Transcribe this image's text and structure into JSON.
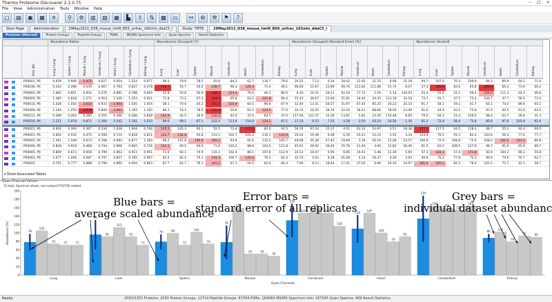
{
  "app": {
    "title": "Thermo Proteome Discoverer 2.1.0.75",
    "status": "Ready",
    "summary": "2093/3355 Proteins: 2093 Protein Groups: 12714 Peptide Groups: 67354 PSMs: 164065 MS/MS Spectrum Info: 167345 Quan Spectra: 409 Result Statistics"
  },
  "menu": [
    "File",
    "View",
    "Administration",
    "Tools",
    "Window",
    "Help"
  ],
  "toolbar_icons": [
    "new-file-icon",
    "open-folder-icon",
    "save-icon",
    "save-all-icon",
    "close-icon",
    "filter-icon",
    "workflow-icon",
    "view-icon",
    "report-icon",
    "table-icon",
    "chart-icon",
    "export-icon",
    "sort-icon",
    "layout-icon",
    "window-icon",
    "network-icon",
    "settings-icon",
    "tool-icon",
    "pin-icon",
    "help-icon"
  ],
  "doc_tabs": [
    "Start Page",
    "Administration",
    "29May2013_D38_mouse_tmt8_B03_unfrac_165min_ddaC5_I",
    "Study: TMT8",
    "29May2013_D38_mouse_tmt8_B04_unfrac_165min_ddaC5_I"
  ],
  "sub_tabs": [
    "Proteins (filtered)",
    "Protein Groups",
    "Peptide Groups",
    "PSMs",
    "MS/MS Spectrum Info",
    "Quan Spectra",
    "Result Statistics"
  ],
  "grid_groups": [
    "Abundance Ratios",
    "Abundances (Grouped) [?]",
    "Abundances (Grouped) Standard Errors [%]",
    "Abundances (Scaled)"
  ],
  "col_first": "Prot. IDs",
  "ratio_cols": [
    "Lung / Lung",
    "Spleen / Lung",
    "Muscle / Lung",
    "Cerebrum / Lung",
    "Heart / Lung",
    "Cerebellum / Lung",
    "Kidney / Lung"
  ],
  "tissues": [
    "Lung",
    "Liver",
    "Spleen",
    "Muscle",
    "Cerebrum",
    "Heart",
    "Cerebellum",
    "Kidney"
  ],
  "rows": [
    {
      "id": "P00041, P6",
      "ratio": [
        "0.659",
        "0.946",
        "1.971",
        "0.627",
        "0.954",
        "1.224",
        "0.677"
      ],
      "ab": [
        "98.0",
        "79.8",
        "78.5",
        "93.8",
        "84.2",
        "62.7",
        "110.7",
        "79.6"
      ],
      "se": [
        "20.22",
        "7.13",
        "0.34",
        "38.42",
        "22.92",
        "21.25",
        "8.68",
        "31.18"
      ],
      "sc": [
        "94.7",
        "107.0",
        "70.3",
        "109.9",
        "84.3",
        "89.9",
        "64.5",
        "71.6"
      ]
    },
    {
      "id": "P00038, P6",
      "ratio": [
        "0.310",
        "0.286",
        "0.039",
        "0.067",
        "0.794",
        "0.627",
        "0.278"
      ],
      "ab": [
        "176.7",
        "54.7",
        "50.6",
        "148.7",
        "96.3",
        "124.4",
        "73.4",
        "49.1"
      ],
      "se": [
        "88.60",
        "15.67",
        "12.89",
        "90.76",
        "121.82",
        "111.86",
        "51.74",
        "8.07"
      ],
      "sc": [
        "37.4",
        "285.8",
        "82.6",
        "65.8",
        "283.3",
        "65.3",
        "73.9",
        "66.2"
      ]
    },
    {
      "id": "P00003, P6",
      "ratio": [
        "1.082",
        "0.851",
        "0.934",
        "0.576",
        "0.891",
        "0.788",
        "0.845"
      ],
      "ab": [
        "52.8",
        "50.8",
        "50.9",
        "248.7",
        "124.4",
        "79.4",
        "46.1",
        "80.6"
      ],
      "se": [
        "8.30",
        "10.31",
        "29.21",
        "92.54",
        "17.72",
        "1.59",
        "5.14",
        "140.03"
      ],
      "sc": [
        "55.4",
        "55.4",
        "52.1",
        "99.4",
        "156.6",
        "111.4",
        "44.3",
        "46.8"
      ]
    },
    {
      "id": "P00005, P6",
      "ratio": [
        "1.385",
        "0.838",
        "1.271",
        "0.914",
        "1.346",
        "1.353",
        "0.921"
      ],
      "ab": [
        "71.8",
        "73.2",
        "67.3",
        "244.9",
        "65.8",
        "63.2",
        "121.8",
        "66.4"
      ],
      "se": [
        "25.43",
        "38.67",
        "23.09",
        "51.81",
        "34.44",
        "34.35",
        "113.18",
        "33.18"
      ],
      "sc": [
        "73.7",
        "91.7",
        "47.5",
        "75.4",
        "104.7",
        "47.7",
        "56.9",
        "73.4"
      ]
    },
    {
      "id": "P00033, P6",
      "ratio": [
        "1.028",
        "1.016",
        "2.022",
        "0.933",
        "1.954",
        "1.545",
        "1.054"
      ],
      "ab": [
        "58.1",
        "70.6",
        "50.2",
        "241.0",
        "120.9",
        "64.5",
        "96.8",
        "67.9"
      ],
      "se": [
        "12.46",
        "13.31",
        "26.57",
        "31.97",
        "67.45",
        "85.25",
        "36.23",
        "25.33"
      ],
      "sc": [
        "61.7",
        "58.1",
        "59.2",
        "61.7",
        "65.1",
        "74.2",
        "89.6",
        "65.1"
      ]
    },
    {
      "id": "P00006, P6",
      "ratio": [
        "1.184",
        "1.255",
        "4.879",
        "0.844",
        "2.063",
        "1.165",
        "1.165"
      ],
      "ab": [
        "86.2",
        "74.3",
        "78.5",
        "231.9",
        "55.8",
        "65.5",
        "124.5",
        "77.9"
      ],
      "se": [
        "16.15",
        "16.55",
        "38.79",
        "32.04",
        "18.41",
        "88.66",
        "78.09",
        "23.49"
      ],
      "sc": [
        "61.6",
        "44.9",
        "63.5",
        "75.8",
        "97.4",
        "60.5",
        "61.9",
        "64.5"
      ]
    },
    {
      "id": "P00111, P6",
      "ratio": [
        "0.389",
        "0.263",
        "0.285",
        "0.355",
        "0.396",
        "0.286",
        "0.849"
      ],
      "ab": [
        "142.9",
        "44.5",
        "36.9",
        "142.3",
        "42.9",
        "37.0",
        "64.5",
        "47.0"
      ],
      "se": [
        "117.94",
        "121.57",
        "12.28",
        "13.81",
        "5.81",
        "23.29",
        "110.48",
        "8.69"
      ],
      "sc": [
        "79.0",
        "64.1",
        "52.4",
        "139.5",
        "98.4",
        "63.7",
        "39.8",
        "31.3"
      ]
    },
    {
      "id": "P00016, P6",
      "ratio": [
        "1.211",
        "1.074",
        "0.871",
        "1.160",
        "1.542",
        "1.181",
        "1.033"
      ],
      "ab": [
        "99.6",
        "99.1",
        "87.1",
        "102.4",
        "113.6",
        "114.4",
        "124.2",
        "97.1"
      ],
      "se": [
        "17.33",
        "9.52",
        "7.25",
        "4.28",
        "2.03",
        "43.24",
        "14.56",
        "1.36"
      ],
      "sc": [
        "81.2",
        "72.9",
        "56.4",
        "73.4",
        "85.6",
        "87.6",
        "103.9",
        "91.6"
      ]
    },
    {
      "id": "P00021, P6",
      "ratio": [
        "0.932",
        "0.304",
        "0.367",
        "0.534",
        "1.038",
        "1.004",
        "0.744"
      ],
      "ab": [
        "135.5",
        "105.3",
        "92.1",
        "52.5",
        "72.4",
        "177.5",
        "82.0",
        "91.5"
      ],
      "se": [
        "56.35",
        "97.24",
        "15.37",
        "4.01",
        "63.32",
        "53.97",
        "0.51",
        "18.38"
      ],
      "sc": [
        "217.5",
        "117.5",
        "64.5",
        "118.3",
        "68.7",
        "55.1",
        "92.4",
        "69.5"
      ]
    },
    {
      "id": "P00001, P6",
      "ratio": [
        "0.842",
        "0.932",
        "0.675",
        "0.568",
        "0.724",
        "0.818",
        "0.811"
      ],
      "ab": [
        "124.7",
        "131.8",
        "93.8",
        "115.1",
        "102.7",
        "101.2",
        "116.1",
        "135.8"
      ],
      "se": [
        "20.24",
        "19.48",
        "6.08",
        "6.39",
        "25.41",
        "15.24",
        "5.55",
        "3.34"
      ],
      "sc": [
        "114.4",
        "76.5",
        "91.3",
        "82.0",
        "103.6",
        "56.4",
        "77.6",
        "77.7"
      ]
    },
    {
      "id": "P00005, P6",
      "ratio": [
        "1.361",
        "1.549",
        "0.673",
        "0.768",
        "0.692",
        "0.677",
        "1.283"
      ],
      "ab": [
        "96.2",
        "101.8",
        "149.0",
        "165.1",
        "93.8",
        "65.6",
        "115.2",
        "105.7"
      ],
      "se": [
        "48.68",
        "35.38",
        "47.45",
        "19.84",
        "3.39",
        "50.16",
        "15.08",
        "53.57"
      ],
      "sc": [
        "100.9",
        "72.9",
        "108.9",
        "75.6",
        "108.4",
        "142.2",
        "143.2",
        "86.8"
      ]
    },
    {
      "id": "P00006, P6",
      "ratio": [
        "0.828",
        "0.918",
        "0.468",
        "0.744",
        "0.906",
        "0.820",
        "0.726"
      ],
      "ab": [
        "143.1",
        "69.5",
        "94.6",
        "71.6",
        "102.2",
        "98.8",
        "104.5",
        "111.8"
      ],
      "se": [
        "45.61",
        "29.92",
        "36.49",
        "25.78",
        "21.40",
        "3.06",
        "12.82",
        "36.49"
      ],
      "sc": [
        "91.5",
        "83.5",
        "109.5",
        "127.9",
        "96.7",
        "91.6",
        "65.6",
        "89.7"
      ]
    },
    {
      "id": "P00085, P6",
      "ratio": [
        "0.809",
        "0.673",
        "0.656",
        "0.799",
        "0.962",
        "0.911",
        "0.951"
      ],
      "ab": [
        "73.0",
        "92.1",
        "79.9",
        "110.2",
        "102.4",
        "86.1",
        "107.8",
        "112.9"
      ],
      "se": [
        "20.13",
        "16.07",
        "5.95",
        "6.66",
        "16.43",
        "5.48",
        "11.30",
        "5.69"
      ],
      "sc": [
        "57.3",
        "183.1",
        "57.4",
        "171.8",
        "82.6",
        "104.2",
        "66.2",
        "55.8"
      ]
    },
    {
      "id": "P00003, P6",
      "ratio": [
        "1.077",
        "1.046",
        "0.687",
        "0.747",
        "0.857",
        "0.785",
        "0.997"
      ],
      "ab": [
        "82.5",
        "82.0",
        "79.1",
        "141.5",
        "100.7",
        "124.4",
        "79.3",
        "82.4"
      ],
      "se": [
        "32.70",
        "5.02",
        "9.38",
        "41.08",
        "4.14",
        "26.37",
        "4.39",
        "2.93"
      ],
      "sc": [
        "49.8",
        "76.2",
        "77.8",
        "72.5",
        "90.9",
        "79.0",
        "70.7",
        "92.7"
      ]
    },
    {
      "id": "P00022",
      "ratio": [
        "0.701",
        "0.777",
        "0.888",
        "0.796",
        "0.890",
        "0.694",
        "0.863"
      ],
      "ab": [
        "87.7",
        "81.7",
        "79.1",
        "161.2",
        "67.3",
        "54.5",
        "62.0",
        "85.4"
      ],
      "se": [
        "7.00",
        "8.13",
        "18.44",
        "17.41",
        "37.05",
        "9.89",
        "26.30",
        "24.97"
      ],
      "sc": [
        "181.0",
        "165.5",
        "82.3",
        "76.4",
        "102.2",
        "72.7",
        "42.3",
        "58.7"
      ]
    }
  ],
  "show_associated": "Show Associated Tables",
  "quan_panel": {
    "title": "Quan Channel Values",
    "subtitle": "15 total, Spectrum shown, non-unique(7/15/7/6) related",
    "ylabel": "Abundance [%]",
    "xlabel": "Quan Channels"
  },
  "chart_data": {
    "type": "bar",
    "title": "",
    "xlabel": "Quan Channels",
    "ylabel": "Abundance [%]",
    "ylim": [
      0,
      200
    ],
    "yticks": [
      0,
      20,
      40,
      60,
      80,
      100,
      120,
      140,
      160,
      180,
      200
    ],
    "categories": [
      "Lung",
      "Liver",
      "Spleen",
      "Muscle",
      "Cerebrum",
      "Heart",
      "Cerebellum",
      "Kidney"
    ],
    "groups": [
      {
        "avg": 78,
        "err": 20,
        "reps": [
          105,
          74,
          71,
          71
        ]
      },
      {
        "avg": 96,
        "err": 35,
        "reps": [
          91,
          113,
          91,
          71
        ]
      },
      {
        "avg": 79,
        "err": 18,
        "reps": [
          99,
          71,
          102,
          74
        ]
      },
      {
        "avg": 78,
        "err": 40,
        "reps": [
          159,
          50,
          50,
          45
        ]
      },
      {
        "avg": 130,
        "err": 40,
        "reps": [
          147,
          159,
          147,
          116
        ]
      },
      {
        "avg": 110,
        "err": 33,
        "reps": [
          147,
          100,
          79,
          91
        ]
      },
      {
        "avg": 134,
        "err": 55,
        "reps": [
          164,
          159,
          155,
          164
        ]
      },
      {
        "avg": 88,
        "err": 10,
        "reps": [
          102,
          79,
          93,
          90
        ]
      }
    ],
    "colors": {
      "avg": "#1a8de0",
      "rep": "#c8c8c8",
      "err": "#0a2f86"
    }
  },
  "annotations": [
    {
      "text": "Blue bars =\naverage scaled abundance"
    },
    {
      "text": "Error bars =\nstandard error of all replicates"
    },
    {
      "text": "Grey bars =\nindividual dataset abundances"
    }
  ]
}
